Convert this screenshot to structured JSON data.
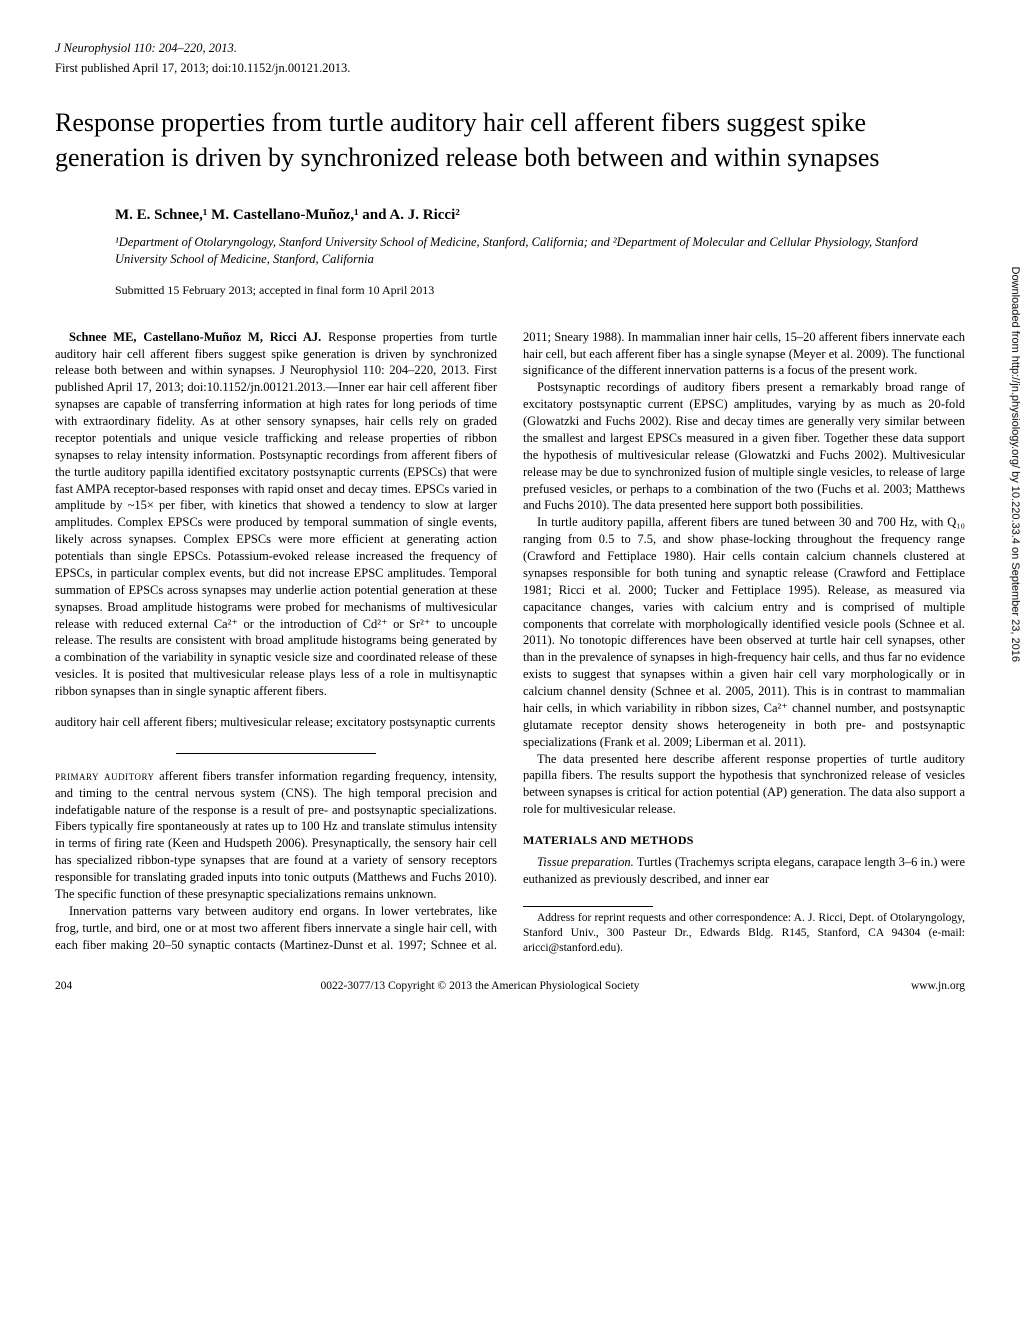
{
  "header": {
    "journal_line": "J Neurophysiol 110: 204–220, 2013.",
    "pub_line": "First published April 17, 2013; doi:10.1152/jn.00121.2013."
  },
  "title": "Response properties from turtle auditory hair cell afferent fibers suggest spike generation is driven by synchronized release both between and within synapses",
  "authors_html": "M. E. Schnee,¹ M. Castellano-Muñoz,¹ and A. J. Ricci²",
  "affiliations": "¹Department of Otolaryngology, Stanford University School of Medicine, Stanford, California; and ²Department of Molecular and Cellular Physiology, Stanford University School of Medicine, Stanford, California",
  "submitted": "Submitted 15 February 2013; accepted in final form 10 April 2013",
  "abstract": {
    "lead": "Schnee ME, Castellano-Muñoz M, Ricci AJ.",
    "body": " Response properties from turtle auditory hair cell afferent fibers suggest spike generation is driven by synchronized release both between and within synapses. J Neurophysiol 110: 204–220, 2013. First published April 17, 2013; doi:10.1152/jn.00121.2013.—Inner ear hair cell afferent fiber synapses are capable of transferring information at high rates for long periods of time with extraordinary fidelity. As at other sensory synapses, hair cells rely on graded receptor potentials and unique vesicle trafficking and release properties of ribbon synapses to relay intensity information. Postsynaptic recordings from afferent fibers of the turtle auditory papilla identified excitatory postsynaptic currents (EPSCs) that were fast AMPA receptor-based responses with rapid onset and decay times. EPSCs varied in amplitude by ~15× per fiber, with kinetics that showed a tendency to slow at larger amplitudes. Complex EPSCs were produced by temporal summation of single events, likely across synapses. Complex EPSCs were more efficient at generating action potentials than single EPSCs. Potassium-evoked release increased the frequency of EPSCs, in particular complex events, but did not increase EPSC amplitudes. Temporal summation of EPSCs across synapses may underlie action potential generation at these synapses. Broad amplitude histograms were probed for mechanisms of multivesicular release with reduced external Ca²⁺ or the introduction of Cd²⁺ or Sr²⁺ to uncouple release. The results are consistent with broad amplitude histograms being generated by a combination of the variability in synaptic vesicle size and coordinated release of these vesicles. It is posited that multivesicular release plays less of a role in multisynaptic ribbon synapses than in single synaptic afferent fibers."
  },
  "keywords": "auditory hair cell afferent fibers; multivesicular release; excitatory postsynaptic currents",
  "intro": {
    "lead": "primary auditory",
    "p1": " afferent fibers transfer information regarding frequency, intensity, and timing to the central nervous system (CNS). The high temporal precision and indefatigable nature of the response is a result of pre- and postsynaptic specializations. Fibers typically fire spontaneously at rates up to 100 Hz and translate stimulus intensity in terms of firing rate (Keen and Hudspeth 2006). Presynaptically, the sensory hair cell has specialized ribbon-type synapses that are found at a variety of sensory receptors responsible for translating graded inputs into tonic outputs (Matthews and Fuchs 2010). The specific function of these presynaptic specializations remains unknown.",
    "p2": "Innervation patterns vary between auditory end organs. In lower vertebrates, like frog, turtle, and bird, one or at most two afferent fibers innervate a single hair cell, with each fiber making 20–50 synaptic contacts (Martinez-Dunst et al. 1997; Schnee et al. 2011; Sneary 1988). In mammalian inner hair cells, 15–20 afferent fibers innervate each hair cell, but each afferent fiber has a single synapse (Meyer et al. 2009). The functional significance of the different innervation patterns is a focus of the present work.",
    "p3": "Postsynaptic recordings of auditory fibers present a remarkably broad range of excitatory postsynaptic current (EPSC) amplitudes, varying by as much as 20-fold (Glowatzki and Fuchs 2002). Rise and decay times are generally very similar between the smallest and largest EPSCs measured in a given fiber. Together these data support the hypothesis of multivesicular release (Glowatzki and Fuchs 2002). Multivesicular release may be due to synchronized fusion of multiple single vesicles, to release of large prefused vesicles, or perhaps to a combination of the two (Fuchs et al. 2003; Matthews and Fuchs 2010). The data presented here support both possibilities.",
    "p4": "In turtle auditory papilla, afferent fibers are tuned between 30 and 700 Hz, with Q₁₀ ranging from 0.5 to 7.5, and show phase-locking throughout the frequency range (Crawford and Fettiplace 1980). Hair cells contain calcium channels clustered at synapses responsible for both tuning and synaptic release (Crawford and Fettiplace 1981; Ricci et al. 2000; Tucker and Fettiplace 1995). Release, as measured via capacitance changes, varies with calcium entry and is comprised of multiple components that correlate with morphologically identified vesicle pools (Schnee et al. 2011). No tonotopic differences have been observed at turtle hair cell synapses, other than in the prevalence of synapses in high-frequency hair cells, and thus far no evidence exists to suggest that synapses within a given hair cell vary morphologically or in calcium channel density (Schnee et al. 2005, 2011). This is in contrast to mammalian hair cells, in which variability in ribbon sizes, Ca²⁺ channel number, and postsynaptic glutamate receptor density shows heterogeneity in both pre- and postsynaptic specializations (Frank et al. 2009; Liberman et al. 2011).",
    "p5": "The data presented here describe afferent response properties of turtle auditory papilla fibers. The results support the hypothesis that synchronized release of vesicles between synapses is critical for action potential (AP) generation. The data also support a role for multivesicular release."
  },
  "methods": {
    "heading": "MATERIALS AND METHODS",
    "lead": "Tissue preparation.",
    "body": " Turtles (Trachemys scripta elegans, carapace length 3–6 in.) were euthanized as previously described, and inner ear"
  },
  "correspondence": "Address for reprint requests and other correspondence: A. J. Ricci, Dept. of Otolaryngology, Stanford Univ., 300 Pasteur Dr., Edwards Bldg. R145, Stanford, CA 94304 (e-mail: aricci@stanford.edu).",
  "footer": {
    "pagenum": "204",
    "copyright": "0022-3077/13 Copyright © 2013 the American Physiological Society",
    "url": "www.jn.org"
  },
  "side_label": "Downloaded from http://jn.physiology.org/ by 10.220.33.4 on September 23, 2016"
}
